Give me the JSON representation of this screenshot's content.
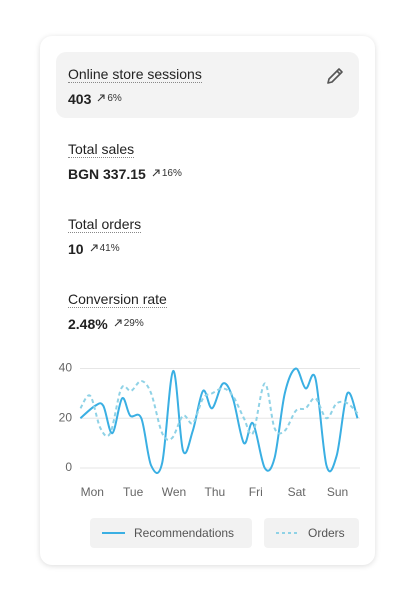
{
  "metrics": [
    {
      "title": "Online store sessions",
      "value": "403",
      "change": "6%"
    },
    {
      "title": "Total sales",
      "value": "BGN 337.15",
      "change": "16%"
    },
    {
      "title": "Total orders",
      "value": "10",
      "change": "41%"
    },
    {
      "title": "Conversion rate",
      "value": "2.48%",
      "change": "29%"
    }
  ],
  "chart_data": {
    "type": "line",
    "xlim": [
      -0.3,
      6.55
    ],
    "xticks": [
      {
        "value": 0,
        "label": "Mon"
      },
      {
        "value": 1,
        "label": "Tue"
      },
      {
        "value": 2,
        "label": "Wen"
      },
      {
        "value": 3,
        "label": "Thu"
      },
      {
        "value": 4,
        "label": "Fri"
      },
      {
        "value": 5,
        "label": "Sat"
      },
      {
        "value": 6,
        "label": "Sun"
      }
    ],
    "ylim": [
      0,
      40
    ],
    "yticks": [
      0,
      20,
      40
    ],
    "grid": true,
    "series": [
      {
        "name": "Recommendations",
        "color": "#3aafe3",
        "dash": false,
        "x": [
          -0.29,
          0.07,
          0.27,
          0.49,
          0.73,
          0.93,
          1.2,
          1.44,
          1.71,
          1.98,
          2.22,
          2.46,
          2.71,
          2.93,
          3.2,
          3.44,
          3.71,
          3.93,
          4.22,
          4.46,
          4.71,
          4.98,
          5.22,
          5.46,
          5.73,
          5.98,
          6.24,
          6.49
        ],
        "values": [
          20,
          25,
          25,
          14,
          28,
          21,
          20,
          1,
          2,
          39,
          7,
          15,
          31,
          24,
          34,
          28,
          10,
          18,
          0,
          4,
          30,
          40,
          32,
          36,
          1,
          5,
          30,
          20
        ]
      },
      {
        "name": "Orders",
        "color": "#8fd2e6",
        "dash": true,
        "x": [
          -0.29,
          -0.05,
          0.2,
          0.44,
          0.71,
          0.95,
          1.2,
          1.44,
          1.71,
          1.95,
          2.22,
          2.46,
          2.71,
          2.93,
          3.2,
          3.44,
          3.71,
          3.93,
          4.22,
          4.46,
          4.71,
          4.98,
          5.22,
          5.46,
          5.73,
          5.98,
          6.24,
          6.49
        ],
        "values": [
          24,
          29,
          16,
          14,
          32,
          31,
          35,
          30,
          14,
          12,
          21,
          18,
          28,
          30,
          32,
          29,
          20,
          14,
          34,
          16,
          15,
          23,
          24,
          28,
          20,
          26,
          26,
          22
        ]
      }
    ]
  }
}
